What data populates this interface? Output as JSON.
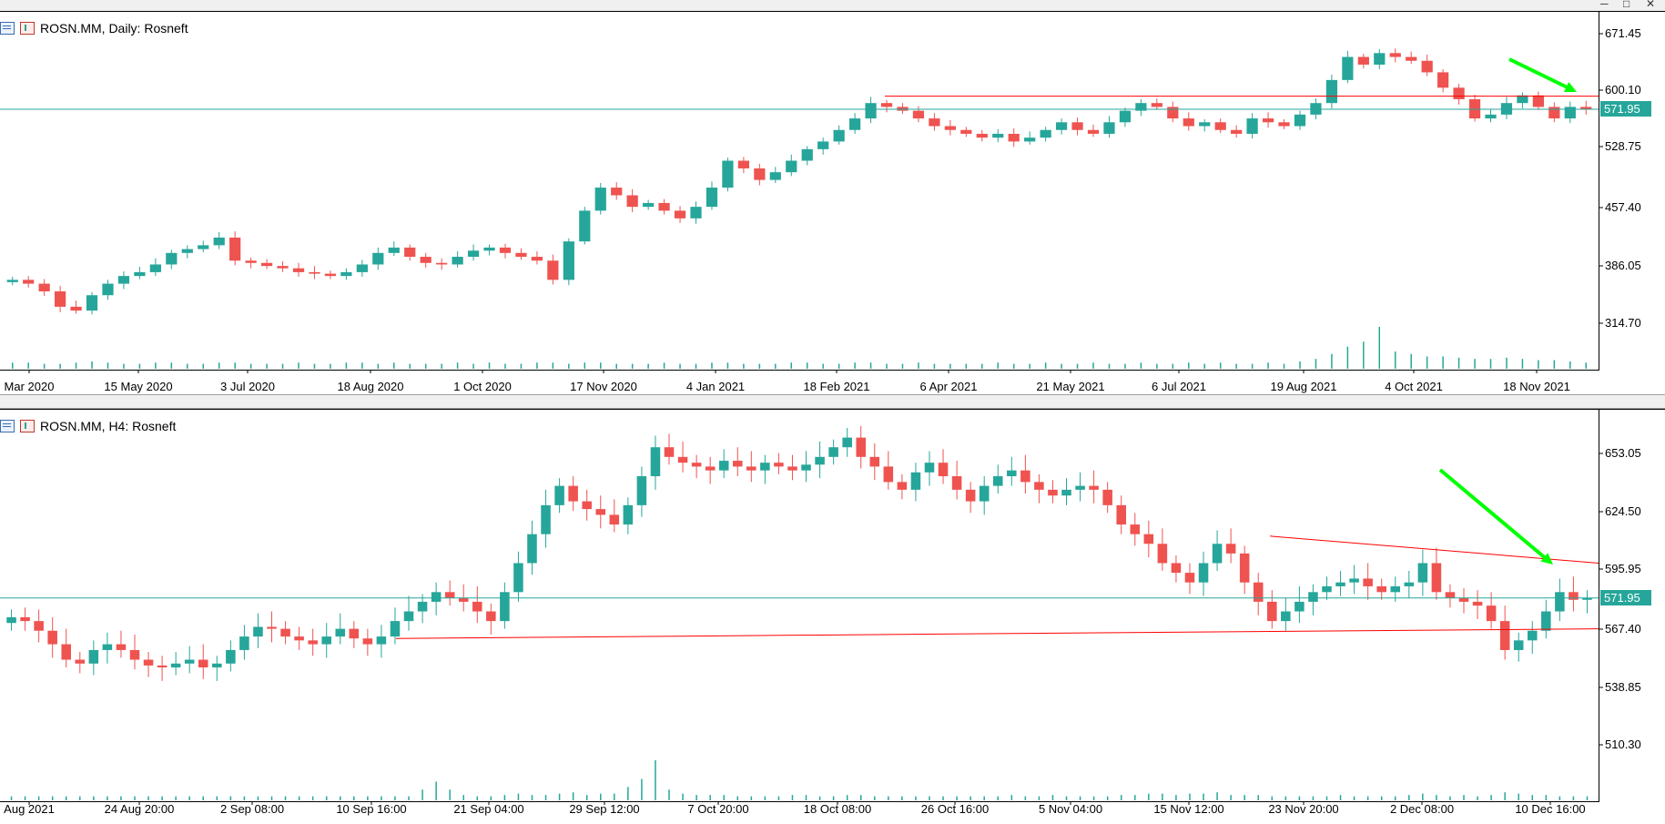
{
  "colors": {
    "bull": "#26a69a",
    "bear": "#ef5350",
    "price_line": "#26a69a",
    "trend_line": "#ff0000",
    "arrow": "#00ff00",
    "volume": "#26a69a"
  },
  "window_controls": [
    "minimize-icon",
    "restore-icon",
    "close-icon"
  ],
  "chart_data": [
    {
      "type": "candlestick",
      "title": "ROSN.MM, Daily:  Rosneft",
      "symbol": "ROSN.MM",
      "timeframe": "Daily",
      "instrument": "Rosneft",
      "current_price": "571.95",
      "y_ticks": [
        "671.45",
        "600.10",
        "528.75",
        "457.40",
        "386.05",
        "314.70"
      ],
      "ylim": [
        290,
        675
      ],
      "x_ticks": [
        "Mar 2020",
        "15 May 2020",
        "3 Jul 2020",
        "18 Aug 2020",
        "1 Oct 2020",
        "17 Nov 2020",
        "4 Jan 2021",
        "18 Feb 2021",
        "6 Apr 2021",
        "21 May 2021",
        "6 Jul 2021",
        "19 Aug 2021",
        "4 Oct 2021",
        "18 Nov 2021"
      ],
      "series": [
        {
          "name": "close",
          "values": [
            350,
            345,
            335,
            315,
            310,
            330,
            345,
            355,
            360,
            370,
            385,
            390,
            395,
            405,
            375,
            372,
            368,
            365,
            360,
            358,
            355,
            360,
            370,
            385,
            392,
            380,
            372,
            370,
            380,
            388,
            392,
            385,
            380,
            375,
            350,
            400,
            440,
            470,
            460,
            445,
            450,
            440,
            430,
            445,
            470,
            505,
            495,
            480,
            490,
            505,
            520,
            530,
            545,
            560,
            580,
            575,
            570,
            560,
            550,
            545,
            540,
            535,
            540,
            530,
            535,
            545,
            555,
            545,
            540,
            555,
            570,
            580,
            575,
            560,
            550,
            555,
            545,
            540,
            560,
            555,
            550,
            565,
            580,
            610,
            640,
            630,
            645,
            640,
            635,
            620,
            600,
            585,
            560,
            565,
            580,
            590,
            575,
            560,
            575,
            572
          ]
        }
      ],
      "volume": [
        5,
        5,
        4,
        4,
        5,
        6,
        5,
        4,
        4,
        5,
        5,
        4,
        4,
        5,
        5,
        4,
        4,
        4,
        5,
        4,
        4,
        5,
        5,
        4,
        5,
        4,
        4,
        4,
        5,
        4,
        5,
        4,
        4,
        5,
        5,
        4,
        5,
        5,
        4,
        4,
        4,
        5,
        4,
        4,
        5,
        5,
        4,
        4,
        4,
        5,
        5,
        4,
        4,
        5,
        5,
        4,
        4,
        5,
        4,
        4,
        4,
        4,
        5,
        4,
        4,
        5,
        4,
        4,
        5,
        4,
        4,
        5,
        4,
        4,
        5,
        4,
        5,
        4,
        4,
        5,
        4,
        6,
        8,
        12,
        18,
        22,
        34,
        14,
        12,
        10,
        10,
        9,
        8,
        8,
        9,
        8,
        7,
        7,
        6,
        5
      ],
      "trend_lines": [
        {
          "from": [
            "Mar 2021",
            589
          ],
          "to": [
            "Dec 2021",
            589
          ]
        },
        {
          "from": [
            "Mar 2020",
            571.95
          ],
          "to": [
            "Dec 2021",
            571.95
          ]
        }
      ],
      "annotations": [
        {
          "type": "arrow",
          "direction": "down-right",
          "color": "green"
        }
      ]
    },
    {
      "type": "candlestick",
      "title": "ROSN.MM, H4:  Rosneft",
      "symbol": "ROSN.MM",
      "timeframe": "H4",
      "instrument": "Rosneft",
      "current_price": "571.95",
      "y_ticks": [
        "653.05",
        "624.50",
        "595.95",
        "567.40",
        "538.85",
        "510.30"
      ],
      "ylim": [
        495,
        660
      ],
      "x_ticks": [
        "Aug 2021",
        "24 Aug 20:00",
        "2 Sep 08:00",
        "10 Sep 16:00",
        "21 Sep 04:00",
        "29 Sep 12:00",
        "7 Oct 20:00",
        "18 Oct 08:00",
        "26 Oct 16:00",
        "5 Nov 04:00",
        "15 Nov 12:00",
        "23 Nov 20:00",
        "2 Dec 08:00",
        "10 Dec 16:00"
      ],
      "series": [
        {
          "name": "close",
          "values": [
            562,
            560,
            555,
            548,
            540,
            538,
            545,
            548,
            545,
            540,
            537,
            536,
            538,
            540,
            536,
            538,
            545,
            552,
            557,
            556,
            552,
            550,
            548,
            552,
            556,
            551,
            548,
            552,
            560,
            565,
            570,
            575,
            572,
            570,
            565,
            560,
            575,
            590,
            605,
            620,
            630,
            622,
            618,
            615,
            610,
            620,
            635,
            650,
            645,
            642,
            640,
            638,
            643,
            640,
            638,
            642,
            640,
            638,
            641,
            645,
            650,
            655,
            645,
            640,
            632,
            628,
            637,
            642,
            635,
            628,
            622,
            630,
            635,
            638,
            632,
            628,
            625,
            628,
            630,
            628,
            620,
            610,
            605,
            600,
            590,
            585,
            580,
            590,
            600,
            595,
            580,
            570,
            560,
            565,
            570,
            575,
            578,
            580,
            582,
            578,
            575,
            578,
            580,
            590,
            575,
            572,
            570,
            568,
            560,
            545,
            550,
            555,
            565,
            575,
            571,
            572
          ]
        }
      ],
      "volume": [
        3,
        3,
        3,
        3,
        3,
        3,
        3,
        3,
        3,
        3,
        3,
        3,
        3,
        3,
        3,
        3,
        3,
        3,
        3,
        3,
        3,
        3,
        3,
        3,
        3,
        3,
        3,
        3,
        3,
        3,
        8,
        14,
        8,
        4,
        3,
        3,
        4,
        5,
        4,
        4,
        5,
        6,
        4,
        5,
        5,
        10,
        16,
        30,
        8,
        5,
        4,
        4,
        4,
        3,
        3,
        3,
        3,
        4,
        4,
        3,
        3,
        4,
        4,
        3,
        3,
        3,
        3,
        3,
        3,
        3,
        3,
        3,
        3,
        4,
        3,
        3,
        4,
        3,
        3,
        3,
        3,
        4,
        4,
        5,
        5,
        4,
        5,
        5,
        6,
        4,
        4,
        4,
        3,
        3,
        3,
        3,
        3,
        4,
        3,
        3,
        3,
        3,
        4,
        5,
        4,
        3,
        4,
        3,
        4,
        6,
        5,
        4,
        4,
        3,
        3,
        3
      ],
      "trend_lines": [
        {
          "from": [
            "10 Sep 16:00",
            551
          ],
          "to": [
            "10 Dec 16:00",
            556
          ]
        },
        {
          "from": [
            "23 Nov 20:00",
            604
          ],
          "to": [
            "10 Dec 16:00",
            590
          ]
        },
        {
          "from": [
            "Aug 2021",
            571.95
          ],
          "to": [
            "10 Dec 16:00",
            571.95
          ]
        }
      ],
      "annotations": [
        {
          "type": "arrow",
          "direction": "down-right",
          "color": "green"
        }
      ]
    }
  ]
}
